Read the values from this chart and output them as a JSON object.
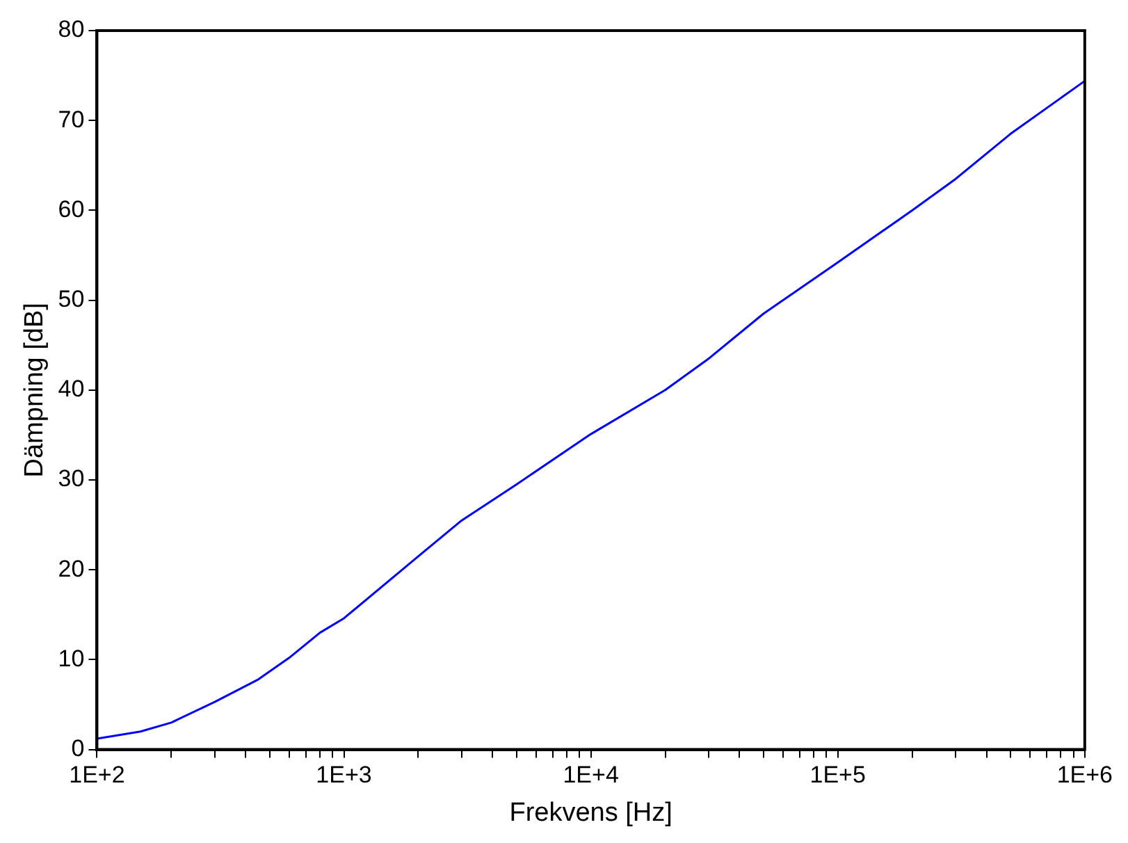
{
  "chart_data": {
    "type": "line",
    "xlabel": "Frekvens [Hz]",
    "ylabel": "Dämpning [dB]",
    "log": "x",
    "grid": false,
    "marker": "none",
    "line_style": "solid",
    "x": [
      100,
      150,
      200,
      300,
      450,
      600,
      800,
      1000,
      2000,
      3000,
      5000,
      10000,
      20000,
      30000,
      50000,
      100000,
      200000,
      300000,
      500000,
      1000000
    ],
    "series": [
      {
        "color": "#0000ff",
        "values": [
          1.2,
          2.0,
          3.0,
          5.3,
          7.8,
          10.2,
          13.0,
          14.6,
          21.5,
          25.5,
          29.5,
          35.1,
          40.0,
          43.5,
          48.5,
          54.2,
          60.0,
          63.5,
          68.5,
          74.4
        ]
      }
    ],
    "xlim": [
      100,
      1000000
    ],
    "xticks": [
      {
        "value": 100,
        "label": "1E+2"
      },
      {
        "value": 200,
        "label": null
      },
      {
        "value": 300,
        "label": null
      },
      {
        "value": 400,
        "label": null
      },
      {
        "value": 500,
        "label": null
      },
      {
        "value": 600,
        "label": null
      },
      {
        "value": 700,
        "label": null
      },
      {
        "value": 800,
        "label": null
      },
      {
        "value": 900,
        "label": null
      },
      {
        "value": 1000,
        "label": "1E+3"
      },
      {
        "value": 2000,
        "label": null
      },
      {
        "value": 3000,
        "label": null
      },
      {
        "value": 4000,
        "label": null
      },
      {
        "value": 5000,
        "label": null
      },
      {
        "value": 6000,
        "label": null
      },
      {
        "value": 7000,
        "label": null
      },
      {
        "value": 8000,
        "label": null
      },
      {
        "value": 9000,
        "label": null
      },
      {
        "value": 10000,
        "label": "1E+4"
      },
      {
        "value": 20000,
        "label": null
      },
      {
        "value": 30000,
        "label": null
      },
      {
        "value": 40000,
        "label": null
      },
      {
        "value": 50000,
        "label": null
      },
      {
        "value": 60000,
        "label": null
      },
      {
        "value": 70000,
        "label": null
      },
      {
        "value": 80000,
        "label": null
      },
      {
        "value": 90000,
        "label": null
      },
      {
        "value": 100000,
        "label": "1E+5"
      },
      {
        "value": 200000,
        "label": null
      },
      {
        "value": 300000,
        "label": null
      },
      {
        "value": 400000,
        "label": null
      },
      {
        "value": 500000,
        "label": null
      },
      {
        "value": 600000,
        "label": null
      },
      {
        "value": 700000,
        "label": null
      },
      {
        "value": 800000,
        "label": null
      },
      {
        "value": 900000,
        "label": null
      },
      {
        "value": 1000000,
        "label": "1E+6"
      }
    ],
    "ylim": [
      0,
      80
    ],
    "yticks": [
      0,
      10,
      20,
      30,
      40,
      50,
      60,
      70,
      80
    ],
    "legend": false
  }
}
